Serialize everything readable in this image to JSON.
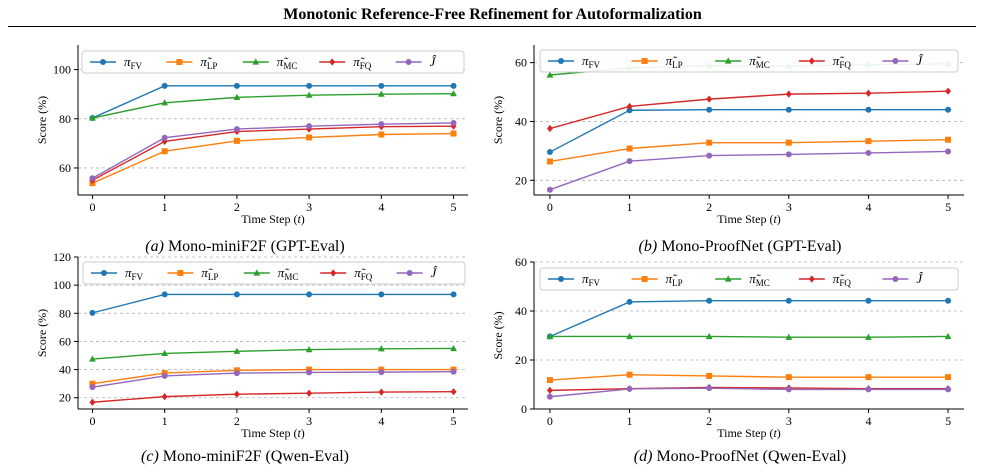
{
  "page_title": "Monotonic Reference-Free Refinement for Autoformalization",
  "legend_labels": [
    "π_FV",
    "π̃_LP",
    "π̃_MC",
    "π̃_FQ",
    "Ĵ"
  ],
  "series_colors": [
    "#1f77b4",
    "#ff7f0e",
    "#2ca02c",
    "#d62728",
    "#9467bd"
  ],
  "series_markers": [
    "circle",
    "square",
    "triangle",
    "diamond",
    "circle"
  ],
  "chart_data": [
    {
      "type": "line",
      "caption_tag": "(a)",
      "caption_text": "Mono-miniF2F (GPT-Eval)",
      "xlabel": "Time Step (t)",
      "ylabel": "Score (%)",
      "x": [
        0,
        1,
        2,
        3,
        4,
        5
      ],
      "xlim": [
        -0.2,
        5.2
      ],
      "ylim": [
        49,
        110
      ],
      "yticks": [
        60,
        80,
        100
      ],
      "grid": "horizontal dashed",
      "legend_position": "top",
      "series": [
        {
          "name": "π_FV",
          "values": [
            80.3,
            93.4,
            93.4,
            93.4,
            93.4,
            93.4
          ]
        },
        {
          "name": "π̃_LP",
          "values": [
            53.8,
            66.8,
            71.0,
            72.4,
            73.6,
            74.0
          ]
        },
        {
          "name": "π̃_MC",
          "values": [
            80.3,
            86.5,
            88.7,
            89.6,
            90.0,
            90.2
          ]
        },
        {
          "name": "π̃_FQ",
          "values": [
            55.0,
            70.8,
            74.8,
            75.8,
            76.8,
            77.0
          ]
        },
        {
          "name": "Ĵ",
          "values": [
            55.8,
            72.3,
            75.8,
            77.0,
            77.8,
            78.3
          ]
        }
      ]
    },
    {
      "type": "line",
      "caption_tag": "(b)",
      "caption_text": "Mono-ProofNet (GPT-Eval)",
      "xlabel": "Time Step (t)",
      "ylabel": "Score (%)",
      "x": [
        0,
        1,
        2,
        3,
        4,
        5
      ],
      "xlim": [
        -0.2,
        5.2
      ],
      "ylim": [
        15,
        66
      ],
      "yticks": [
        20,
        40,
        60
      ],
      "grid": "horizontal dashed",
      "legend_position": "top",
      "series": [
        {
          "name": "π_FV",
          "values": [
            29.6,
            43.8,
            44.0,
            44.0,
            44.0,
            44.0
          ]
        },
        {
          "name": "π̃_LP",
          "values": [
            26.4,
            30.8,
            32.8,
            32.8,
            33.3,
            33.8
          ]
        },
        {
          "name": "π̃_MC",
          "values": [
            55.8,
            58.2,
            59.0,
            58.8,
            59.3,
            59.6
          ]
        },
        {
          "name": "π̃_FQ",
          "values": [
            37.6,
            45.1,
            47.6,
            49.3,
            49.6,
            50.3
          ]
        },
        {
          "name": "Ĵ",
          "values": [
            16.8,
            26.5,
            28.4,
            28.8,
            29.3,
            29.8
          ]
        }
      ]
    },
    {
      "type": "line",
      "caption_tag": "(c)",
      "caption_text": "Mono-miniF2F (Qwen-Eval)",
      "xlabel": "Time Step (t)",
      "ylabel": "Score (%)",
      "x": [
        0,
        1,
        2,
        3,
        4,
        5
      ],
      "xlim": [
        -0.2,
        5.2
      ],
      "ylim": [
        12,
        120
      ],
      "yticks": [
        20,
        40,
        60,
        80,
        100,
        120
      ],
      "grid": "horizontal dashed",
      "legend_position": "top",
      "series": [
        {
          "name": "π_FV",
          "values": [
            80.3,
            93.4,
            93.4,
            93.4,
            93.4,
            93.4
          ]
        },
        {
          "name": "π̃_LP",
          "values": [
            30.0,
            37.5,
            39.5,
            40.0,
            40.0,
            40.0
          ]
        },
        {
          "name": "π̃_MC",
          "values": [
            47.5,
            51.5,
            53.0,
            54.2,
            54.8,
            55.0
          ]
        },
        {
          "name": "π̃_FQ",
          "values": [
            16.8,
            20.8,
            22.5,
            23.2,
            24.0,
            24.3
          ]
        },
        {
          "name": "Ĵ",
          "values": [
            27.5,
            35.5,
            37.5,
            38.0,
            38.2,
            38.5
          ]
        }
      ]
    },
    {
      "type": "line",
      "caption_tag": "(d)",
      "caption_text": "Mono-ProofNet (Qwen-Eval)",
      "xlabel": "Time Step (t)",
      "ylabel": "Score (%)",
      "x": [
        0,
        1,
        2,
        3,
        4,
        5
      ],
      "xlim": [
        -0.2,
        5.2
      ],
      "ylim": [
        0,
        60
      ],
      "yticks": [
        0,
        20,
        40,
        60
      ],
      "grid": "horizontal dashed",
      "legend_position": "top",
      "series": [
        {
          "name": "π_FV",
          "values": [
            29.6,
            43.7,
            44.2,
            44.2,
            44.2,
            44.2
          ]
        },
        {
          "name": "π̃_LP",
          "values": [
            11.8,
            14.0,
            13.5,
            13.0,
            13.0,
            13.0
          ]
        },
        {
          "name": "π̃_MC",
          "values": [
            29.6,
            29.6,
            29.6,
            29.3,
            29.3,
            29.6
          ]
        },
        {
          "name": "π̃_FQ",
          "values": [
            7.6,
            8.3,
            8.8,
            8.6,
            8.3,
            8.3
          ]
        },
        {
          "name": "Ĵ",
          "values": [
            5.0,
            8.2,
            8.5,
            8.0,
            8.0,
            8.0
          ]
        }
      ]
    }
  ]
}
